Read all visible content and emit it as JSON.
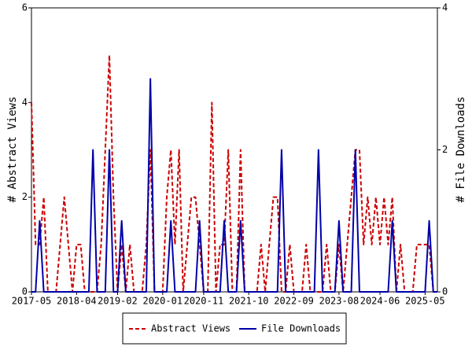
{
  "chart_data": {
    "type": "line",
    "x": [
      "2017-05",
      "2017-06",
      "2017-07",
      "2017-08",
      "2017-09",
      "2017-10",
      "2017-11",
      "2017-12",
      "2018-01",
      "2018-02",
      "2018-03",
      "2018-04",
      "2018-05",
      "2018-06",
      "2018-07",
      "2018-08",
      "2018-09",
      "2018-10",
      "2018-11",
      "2018-12",
      "2019-01",
      "2019-02",
      "2019-03",
      "2019-04",
      "2019-05",
      "2019-06",
      "2019-07",
      "2019-08",
      "2019-09",
      "2019-10",
      "2019-11",
      "2019-12",
      "2020-01",
      "2020-02",
      "2020-03",
      "2020-04",
      "2020-05",
      "2020-06",
      "2020-07",
      "2020-08",
      "2020-09",
      "2020-10",
      "2020-11",
      "2020-12",
      "2021-01",
      "2021-02",
      "2021-03",
      "2021-04",
      "2021-05",
      "2021-06",
      "2021-07",
      "2021-08",
      "2021-09",
      "2021-10",
      "2021-11",
      "2021-12",
      "2022-01",
      "2022-02",
      "2022-03",
      "2022-04",
      "2022-05",
      "2022-06",
      "2022-07",
      "2022-08",
      "2022-09",
      "2022-10",
      "2022-11",
      "2022-12",
      "2023-01",
      "2023-02",
      "2023-03",
      "2023-04",
      "2023-05",
      "2023-06",
      "2023-07",
      "2023-08",
      "2023-09",
      "2023-10",
      "2023-11",
      "2023-12",
      "2024-01",
      "2024-02",
      "2024-03",
      "2024-04",
      "2024-05",
      "2024-06",
      "2024-07",
      "2024-08",
      "2024-09",
      "2024-10",
      "2024-11",
      "2024-12",
      "2025-01",
      "2025-02",
      "2025-03",
      "2025-04",
      "2025-05",
      "2025-06",
      "2025-07",
      "2025-08"
    ],
    "xticks": [
      "2017-05",
      "2018-04",
      "2019-02",
      "2020-01",
      "2020-11",
      "2021-10",
      "2022-09",
      "2023-08",
      "2024-06",
      "2025-05"
    ],
    "series": [
      {
        "name": "Abstract Views",
        "color": "#cc0000",
        "dash": true,
        "values": [
          4,
          1,
          1,
          2,
          0,
          0,
          0,
          1,
          2,
          1,
          0,
          1,
          1,
          0,
          0,
          0,
          0,
          1,
          3,
          5,
          2,
          0,
          1,
          0,
          1,
          0,
          0,
          0,
          1,
          3,
          0,
          0,
          0,
          2,
          3,
          1,
          3,
          0,
          1,
          2,
          2,
          1,
          0,
          0,
          4,
          0,
          1,
          1,
          3,
          0,
          0,
          3,
          0,
          0,
          0,
          0,
          1,
          0,
          1,
          2,
          2,
          0,
          0,
          1,
          0,
          0,
          0,
          1,
          0,
          0,
          0,
          0,
          1,
          0,
          0,
          1,
          0,
          1,
          2,
          3,
          3,
          1,
          2,
          1,
          2,
          1,
          2,
          1,
          2,
          0,
          1,
          0,
          0,
          0,
          1,
          1,
          1,
          1,
          0,
          0
        ]
      },
      {
        "name": "File Downloads",
        "color": "#0000aa",
        "axis": "y2",
        "values": [
          0,
          0,
          1,
          0,
          0,
          0,
          0,
          0,
          0,
          0,
          0,
          0,
          0,
          0,
          0,
          2,
          0,
          0,
          0,
          2,
          0,
          0,
          1,
          0,
          0,
          0,
          0,
          0,
          0,
          3,
          0,
          0,
          0,
          0,
          1,
          0,
          0,
          0,
          0,
          0,
          0,
          1,
          0,
          0,
          0,
          0,
          0,
          1,
          0,
          0,
          0,
          1,
          0,
          0,
          0,
          0,
          0,
          0,
          0,
          0,
          0,
          2,
          0,
          0,
          0,
          0,
          0,
          0,
          0,
          0,
          2,
          0,
          0,
          0,
          0,
          1,
          0,
          0,
          0,
          2,
          0,
          0,
          0,
          0,
          0,
          0,
          0,
          0,
          1,
          0,
          0,
          0,
          0,
          0,
          0,
          0,
          0,
          1,
          0,
          0
        ]
      }
    ],
    "ylabel": "# Abstract Views",
    "y2label": "# File Downloads",
    "ylim": [
      0,
      6
    ],
    "yticks": [
      0,
      2,
      4,
      6
    ],
    "y2lim": [
      0,
      4
    ],
    "y2ticks": [
      0,
      2,
      4
    ]
  }
}
